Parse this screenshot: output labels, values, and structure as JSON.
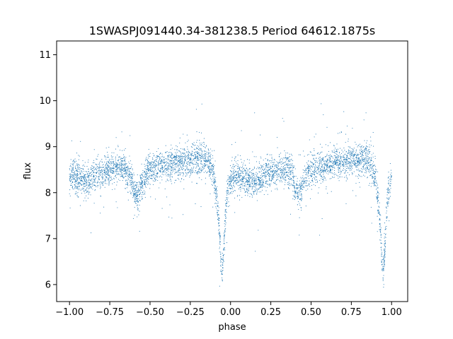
{
  "chart_data": {
    "type": "scatter",
    "title": "1SWASPJ091440.34-381238.5 Period 64612.1875s",
    "xlabel": "phase",
    "ylabel": "flux",
    "xlim": [
      -1.08,
      1.1
    ],
    "ylim": [
      5.63,
      11.3
    ],
    "xticks": [
      -1.0,
      -0.75,
      -0.5,
      -0.25,
      0.0,
      0.25,
      0.5,
      0.75,
      1.0
    ],
    "xtick_labels": [
      "−1.00",
      "−0.75",
      "−0.50",
      "−0.25",
      "0.00",
      "0.25",
      "0.50",
      "0.75",
      "1.00"
    ],
    "yticks": [
      6,
      7,
      8,
      9,
      10,
      11
    ],
    "ytick_labels": [
      "6",
      "7",
      "8",
      "9",
      "10",
      "11"
    ],
    "grid": false,
    "legend": "none",
    "marker_color": "#1f77b4",
    "series": [
      {
        "x": [
          -1.0,
          -0.95,
          -0.9,
          -0.85,
          -0.8,
          -0.75,
          -0.7,
          -0.65,
          -0.62,
          -0.6,
          -0.58,
          -0.57,
          -0.55,
          -0.52,
          -0.5,
          -0.45,
          -0.4,
          -0.35,
          -0.3,
          -0.25,
          -0.2,
          -0.15,
          -0.12,
          -0.1,
          -0.08,
          -0.07,
          -0.06,
          -0.05,
          -0.04,
          -0.03,
          -0.02,
          0.0,
          0.05,
          0.1,
          0.15,
          0.2,
          0.25,
          0.3,
          0.35,
          0.38,
          0.4,
          0.42,
          0.43,
          0.45,
          0.48,
          0.5,
          0.55,
          0.6,
          0.65,
          0.7,
          0.75,
          0.8,
          0.85,
          0.88,
          0.9,
          0.92,
          0.93,
          0.94,
          0.95,
          0.96,
          0.97,
          0.98,
          1.0
        ],
        "y": [
          8.4,
          8.3,
          8.25,
          8.35,
          8.45,
          8.5,
          8.55,
          8.5,
          8.35,
          8.1,
          7.95,
          7.95,
          8.2,
          8.45,
          8.5,
          8.55,
          8.6,
          8.65,
          8.65,
          8.7,
          8.75,
          8.7,
          8.55,
          8.3,
          7.7,
          7.2,
          6.5,
          6.3,
          6.9,
          7.6,
          8.05,
          8.35,
          8.35,
          8.25,
          8.25,
          8.35,
          8.45,
          8.5,
          8.55,
          8.45,
          8.1,
          7.95,
          7.95,
          8.2,
          8.45,
          8.5,
          8.55,
          8.6,
          8.65,
          8.65,
          8.7,
          8.75,
          8.7,
          8.55,
          8.3,
          7.7,
          7.2,
          6.5,
          6.3,
          6.9,
          7.6,
          8.05,
          8.35
        ]
      }
    ]
  }
}
